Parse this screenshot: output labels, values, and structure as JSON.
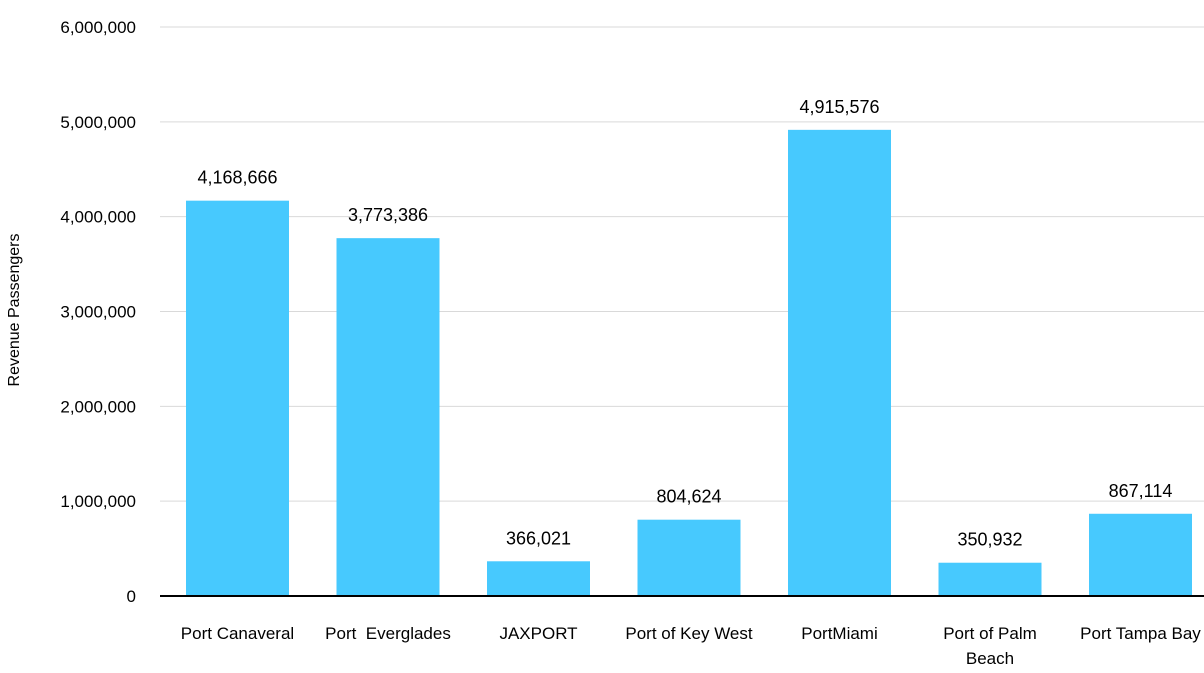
{
  "chart_data": {
    "type": "bar",
    "ylabel": "Revenue Passengers",
    "xlabel": "",
    "ylim": [
      0,
      6000000
    ],
    "y_ticks": [
      0,
      1000000,
      2000000,
      3000000,
      4000000,
      5000000,
      6000000
    ],
    "y_tick_labels": [
      "0",
      "1,000,000",
      "2,000,000",
      "3,000,000",
      "4,000,000",
      "5,000,000",
      "6,000,000"
    ],
    "grid": true,
    "legend": "none",
    "categories": [
      [
        "Port Canaveral"
      ],
      [
        "Port  Everglades"
      ],
      [
        "JAXPORT"
      ],
      [
        "Port of Key West"
      ],
      [
        "PortMiami"
      ],
      [
        "Port of Palm",
        "Beach"
      ],
      [
        "Port Tampa Bay"
      ]
    ],
    "values": [
      4168666,
      3773386,
      366021,
      804624,
      4915576,
      350932,
      867114
    ],
    "data_labels": [
      "4,168,666",
      "3,773,386",
      "366,021",
      "804,624",
      "4,915,576",
      "350,932",
      "867,114"
    ],
    "bar_color": "#47c9fe"
  }
}
